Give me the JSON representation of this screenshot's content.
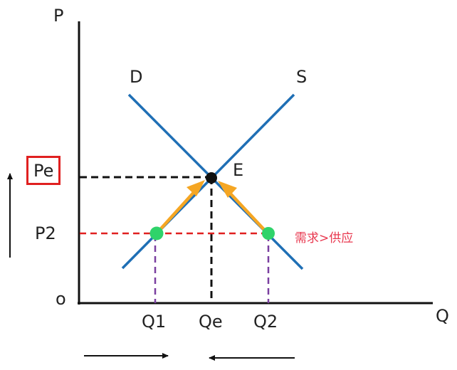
{
  "diagram": {
    "axes": {
      "y_label": "P",
      "x_label": "Q",
      "origin_label": "o"
    },
    "curves": {
      "demand_label": "D",
      "supply_label": "S"
    },
    "equilibrium_label": "E",
    "price_ticks": {
      "equilibrium": "Pe",
      "lower": "P2"
    },
    "quantity_ticks": {
      "q1": "Q1",
      "qe": "Qe",
      "q2": "Q2"
    },
    "annotation": "需求>供应",
    "colors": {
      "curve": "#1f6fb5",
      "equilibrium_dash": "#111111",
      "price_dash": "#e02020",
      "quantity_dash": "#7a3fa0",
      "point": "#2fd36a",
      "arrow": "#f5a623",
      "highlight_box": "#e02020",
      "annotation": "#e8384f"
    },
    "icons": [
      "up-arrow-icon",
      "right-arrow-icon",
      "left-arrow-icon"
    ]
  }
}
